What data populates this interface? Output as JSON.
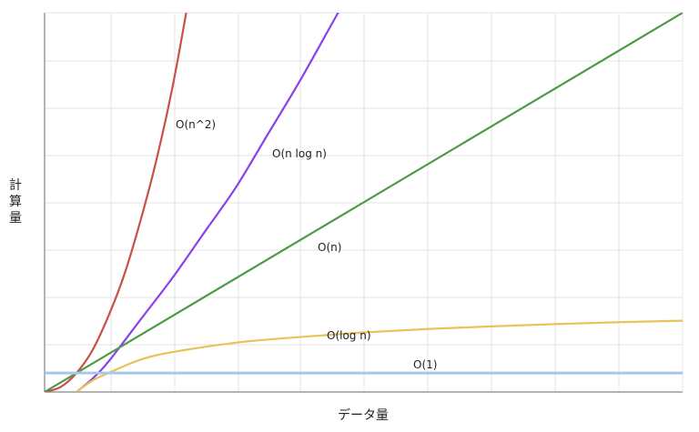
{
  "chart_data": {
    "type": "line",
    "title": "",
    "xlabel": "データ量",
    "ylabel": "計算量",
    "xlim": [
      0,
      10
    ],
    "ylim": [
      0,
      10
    ],
    "grid": true,
    "legend": "none",
    "series": [
      {
        "name": "O(n^2)",
        "color": "#c9504a",
        "x": [
          0,
          0.25,
          0.5,
          0.75,
          1.0,
          1.25,
          1.5,
          1.75,
          2.0,
          2.22
        ],
        "y": [
          0,
          0.13,
          0.5,
          1.1,
          2.0,
          3.1,
          4.5,
          6.1,
          8.0,
          10.0
        ]
      },
      {
        "name": "O(n log n)",
        "color": "#8a3ff0",
        "x": [
          0.5,
          0.75,
          1.0,
          1.5,
          2.0,
          2.5,
          3.0,
          3.5,
          4.0,
          4.5,
          4.6
        ],
        "y": [
          0,
          0.35,
          0.8,
          1.9,
          3.0,
          4.2,
          5.4,
          6.8,
          8.2,
          9.7,
          10.0
        ]
      },
      {
        "name": "O(n)",
        "color": "#4d9b45",
        "x": [
          0,
          10
        ],
        "y": [
          0,
          10
        ]
      },
      {
        "name": "O(log n)",
        "color": "#e8c25a",
        "x": [
          0.5,
          0.75,
          1.0,
          1.5,
          2.0,
          3.0,
          4.0,
          5.0,
          6.0,
          7.0,
          8.0,
          9.0,
          10.0
        ],
        "y": [
          0,
          0.3,
          0.5,
          0.85,
          1.05,
          1.3,
          1.45,
          1.57,
          1.66,
          1.73,
          1.79,
          1.84,
          1.88
        ]
      },
      {
        "name": "O(1)",
        "color": "#a9c8e4",
        "x": [
          0,
          10
        ],
        "y": [
          0.5,
          0.5
        ]
      }
    ]
  }
}
